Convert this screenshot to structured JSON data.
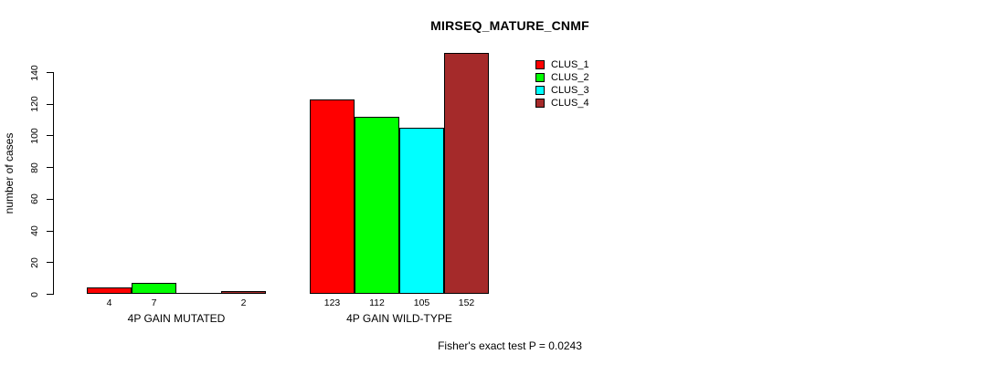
{
  "chart_data": {
    "type": "bar",
    "title": "MIRSEQ_MATURE_CNMF",
    "ylabel": "number of cases",
    "ylim": [
      0,
      140
    ],
    "yticks": [
      0,
      20,
      40,
      60,
      80,
      100,
      120,
      140
    ],
    "categories": [
      "4P GAIN MUTATED",
      "4P GAIN WILD-TYPE"
    ],
    "series": [
      {
        "name": "CLUS_1",
        "color": "#ff0000",
        "values": [
          4,
          123
        ]
      },
      {
        "name": "CLUS_2",
        "color": "#00ff00",
        "values": [
          7,
          112
        ]
      },
      {
        "name": "CLUS_3",
        "color": "#00ffff",
        "values": [
          0,
          105
        ]
      },
      {
        "name": "CLUS_4",
        "color": "#a52a2a",
        "values": [
          2,
          152
        ]
      }
    ],
    "legend": {
      "position": "top-right",
      "entries": [
        "CLUS_1",
        "CLUS_2",
        "CLUS_3",
        "CLUS_4"
      ]
    },
    "grid": false,
    "background": "#ffffff",
    "axis_color": "#000000",
    "annotation": "Fisher's exact test P = 0.0243"
  }
}
